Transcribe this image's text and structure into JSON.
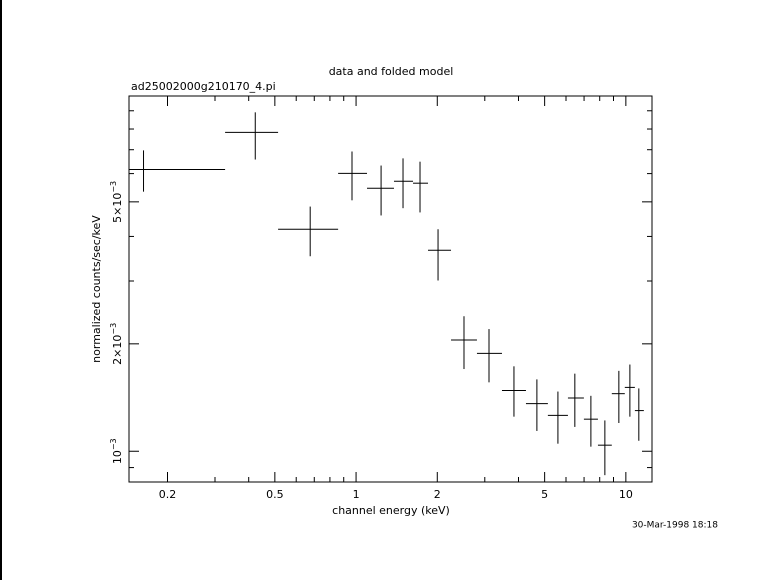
{
  "chart_data": {
    "type": "errorbar",
    "title": "data and folded model",
    "subtitle": "ad25002000g210170_4.pi",
    "x_label": "channel energy (keV)",
    "y_label": "normalized counts/sec/keV",
    "timestamp": "30-Mar-1998 18:18",
    "xlog": true,
    "ylog": true,
    "color": "#000000",
    "xlim": [
      0.144,
      12.5
    ],
    "ylim": [
      0.00082,
      0.0099
    ],
    "xticks": [
      0.2,
      0.5,
      1,
      2,
      5,
      10
    ],
    "xminorticks": [
      0.3,
      0.4,
      0.6,
      0.7,
      0.8,
      0.9,
      3,
      4,
      6,
      7,
      8,
      9
    ],
    "yticks": [
      {
        "value": 0.001,
        "label": "10",
        "exponent": "−3"
      },
      {
        "value": 0.002,
        "label": "2×10",
        "exponent": "−3"
      },
      {
        "value": 0.005,
        "label": "5×10",
        "exponent": "−3"
      }
    ],
    "yminorticks": [
      0.0009,
      0.003,
      0.004,
      0.006,
      0.007,
      0.008,
      0.009
    ],
    "x": [
      0.163,
      0.423,
      0.676,
      0.966,
      1.238,
      1.493,
      1.726,
      2.013,
      2.512,
      3.11,
      3.848,
      4.68,
      5.6,
      6.47,
      7.42,
      8.36,
      9.42,
      10.35,
      11.17
    ],
    "x_low": [
      0.144,
      0.327,
      0.514,
      0.858,
      1.098,
      1.382,
      1.626,
      1.848,
      2.249,
      2.806,
      3.474,
      4.263,
      5.14,
      6.1,
      6.99,
      7.88,
      8.87,
      9.91,
      10.8
    ],
    "x_high": [
      0.327,
      0.514,
      0.858,
      1.098,
      1.382,
      1.626,
      1.848,
      2.249,
      2.806,
      3.474,
      4.263,
      5.14,
      6.1,
      6.99,
      7.88,
      8.87,
      9.91,
      10.8,
      11.66
    ],
    "values": [
      0.00616,
      0.00783,
      0.00419,
      0.00601,
      0.00546,
      0.00571,
      0.00564,
      0.00366,
      0.00205,
      0.00188,
      0.00148,
      0.00136,
      0.00126,
      0.00141,
      0.00123,
      0.00104,
      0.00145,
      0.00151,
      0.0013
    ],
    "y_low": [
      0.00534,
      0.00657,
      0.00352,
      0.00505,
      0.00458,
      0.0048,
      0.00467,
      0.00301,
      0.0017,
      0.00156,
      0.00125,
      0.00114,
      0.00105,
      0.00117,
      0.00103,
      0.000857,
      0.0012,
      0.00125,
      0.00107
    ],
    "y_high": [
      0.00697,
      0.00891,
      0.00485,
      0.00692,
      0.00632,
      0.00662,
      0.00648,
      0.00419,
      0.00239,
      0.0022,
      0.00173,
      0.00159,
      0.00147,
      0.00165,
      0.00143,
      0.00122,
      0.00168,
      0.00175,
      0.0015
    ]
  }
}
